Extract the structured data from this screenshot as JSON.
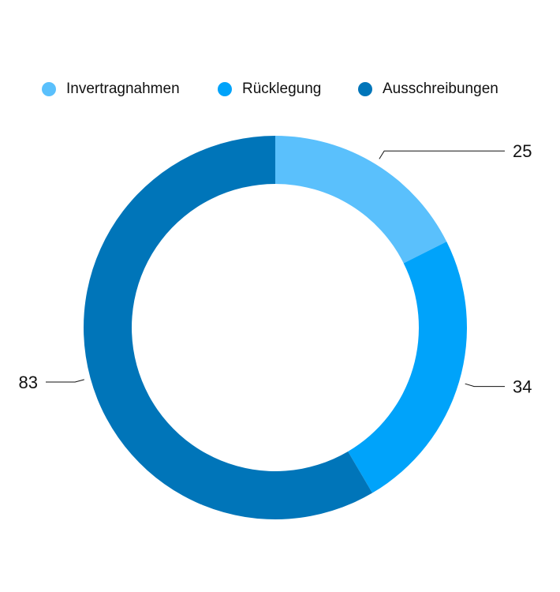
{
  "chart_data": {
    "type": "donut",
    "series": [
      {
        "name": "Invertragnahmen",
        "color": "#5ac0fc",
        "values": [
          25
        ]
      },
      {
        "name": "Rücklegung",
        "color": "#00a3fa",
        "values": [
          34
        ]
      },
      {
        "name": "Ausschreibungen",
        "color": "#0075b9",
        "values": [
          83
        ]
      }
    ],
    "legend": "top"
  }
}
